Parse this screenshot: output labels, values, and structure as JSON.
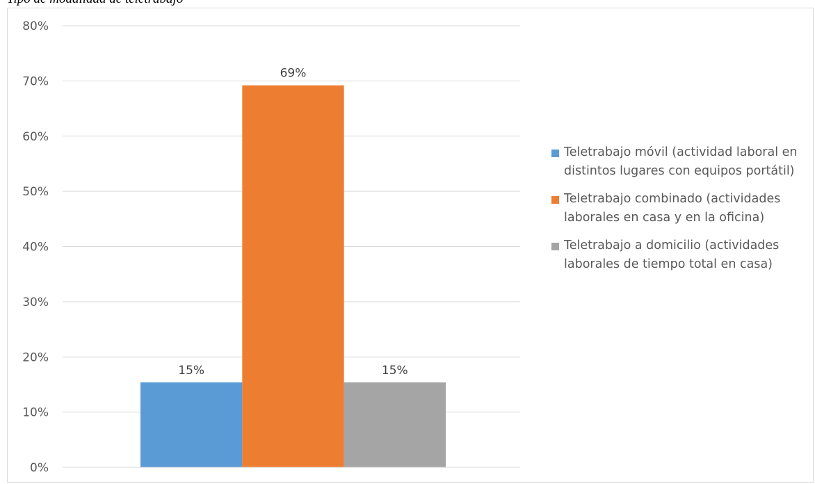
{
  "caption": "Tipo de modalidad de teletrabajo",
  "chart_data": {
    "type": "bar",
    "title": "",
    "xlabel": "",
    "ylabel": "",
    "ylim": [
      0,
      80
    ],
    "y_ticks": [
      "0%",
      "10%",
      "20%",
      "30%",
      "40%",
      "50%",
      "60%",
      "70%",
      "80%"
    ],
    "grid": true,
    "legend_position": "right",
    "categories": [
      ""
    ],
    "series": [
      {
        "name": "Teletrabajo móvil (actividad laboral en distintos lugares con equipos portátil)",
        "values": [
          15.4
        ],
        "label": "15%",
        "color": "#5b9bd5"
      },
      {
        "name": "Teletrabajo combinado (actividades laborales en casa y en la oficina)",
        "values": [
          69.2
        ],
        "label": "69%",
        "color": "#ed7d31"
      },
      {
        "name": "Teletrabajo a domicilio (actividades laborales de tiempo total en casa)",
        "values": [
          15.4
        ],
        "label": "15%",
        "color": "#a5a5a5"
      }
    ]
  }
}
